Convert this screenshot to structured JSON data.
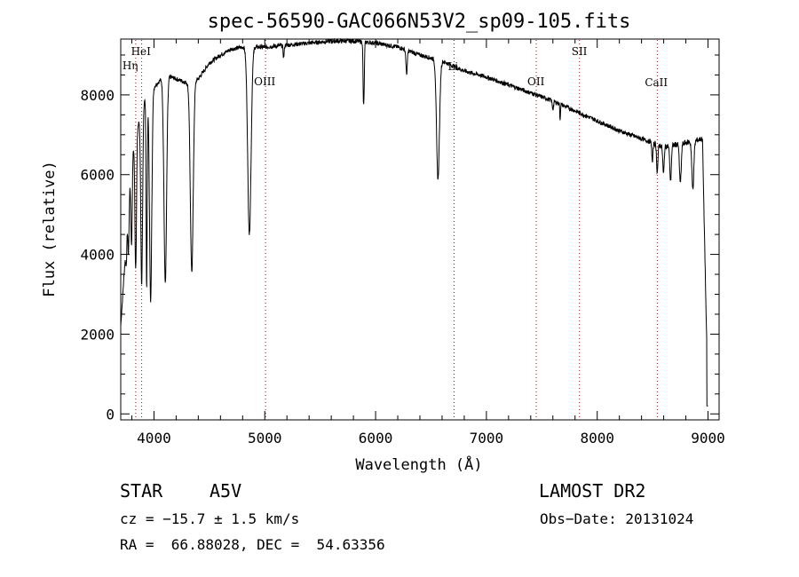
{
  "chart_data": {
    "type": "line",
    "title": "spec-56590-GAC066N53V2_sp09-105.fits",
    "xlabel": "Wavelength (Å)",
    "ylabel": "Flux (relative)",
    "xlim": [
      3700,
      9100
    ],
    "ylim": [
      -150,
      9400
    ],
    "xticks": [
      4000,
      5000,
      6000,
      7000,
      8000,
      9000
    ],
    "yticks": [
      0,
      2000,
      4000,
      6000,
      8000
    ],
    "grid": false,
    "continuum": {
      "x": [
        3700,
        3800,
        3900,
        4000,
        4100,
        4200,
        4300,
        4400,
        4500,
        4600,
        4700,
        4800,
        5000,
        5200,
        5400,
        5600,
        5800,
        6000,
        6200,
        6400,
        6600,
        6800,
        7000,
        7200,
        7400,
        7600,
        7800,
        8000,
        8200,
        8400,
        8600,
        8800,
        8950,
        9000
      ],
      "y": [
        2200,
        6500,
        7800,
        8200,
        8500,
        8400,
        8300,
        8400,
        8800,
        9000,
        9150,
        9200,
        9200,
        9250,
        9300,
        9350,
        9350,
        9300,
        9200,
        9000,
        8850,
        8600,
        8450,
        8250,
        8050,
        7850,
        7600,
        7350,
        7100,
        6900,
        6700,
        6800,
        6900,
        200
      ]
    },
    "absorption_lines": [
      {
        "x": 3750,
        "depth": 600,
        "width": 5
      },
      {
        "x": 3770,
        "depth": 1200,
        "width": 5
      },
      {
        "x": 3798,
        "depth": 2200,
        "width": 6
      },
      {
        "x": 3835,
        "depth": 3300,
        "width": 7
      },
      {
        "x": 3889,
        "depth": 4500,
        "width": 8
      },
      {
        "x": 3934,
        "depth": 4800,
        "width": 5
      },
      {
        "x": 3970,
        "depth": 5300,
        "width": 10
      },
      {
        "x": 4102,
        "depth": 5200,
        "width": 12
      },
      {
        "x": 4341,
        "depth": 4800,
        "width": 13
      },
      {
        "x": 4861,
        "depth": 4700,
        "width": 15
      },
      {
        "x": 5170,
        "depth": 300,
        "width": 5
      },
      {
        "x": 5890,
        "depth": 1200,
        "width": 4
      },
      {
        "x": 5896,
        "depth": 900,
        "width": 4
      },
      {
        "x": 6280,
        "depth": 600,
        "width": 6
      },
      {
        "x": 6563,
        "depth": 3000,
        "width": 13
      },
      {
        "x": 7600,
        "depth": 200,
        "width": 6
      },
      {
        "x": 7665,
        "depth": 400,
        "width": 3
      },
      {
        "x": 8498,
        "depth": 500,
        "width": 5
      },
      {
        "x": 8542,
        "depth": 700,
        "width": 6
      },
      {
        "x": 8598,
        "depth": 700,
        "width": 6
      },
      {
        "x": 8662,
        "depth": 900,
        "width": 7
      },
      {
        "x": 8750,
        "depth": 1000,
        "width": 8
      },
      {
        "x": 8863,
        "depth": 1200,
        "width": 9
      }
    ],
    "line_markers": [
      {
        "label": "HeI",
        "x": 3889
      },
      {
        "label": "Hη",
        "x": 3835
      },
      {
        "label": "OIII",
        "x": 5007
      },
      {
        "label": "Li",
        "x": 6708
      },
      {
        "label": "OII",
        "x": 7450
      },
      {
        "label": "SII",
        "x": 7840
      },
      {
        "label": "CaII",
        "x": 8542
      }
    ]
  },
  "info": {
    "object_class": "STAR",
    "subclass": "A5V",
    "survey": "LAMOST DR2",
    "cz": "cz = −15.7 ± 1.5 km/s",
    "obs_date": "Obs−Date: 20131024",
    "coords": "RA =  66.88028, DEC =  54.63356"
  },
  "colors": {
    "axis": "#000000",
    "spectrum": "#000000",
    "marker_lines": "#c00000"
  }
}
